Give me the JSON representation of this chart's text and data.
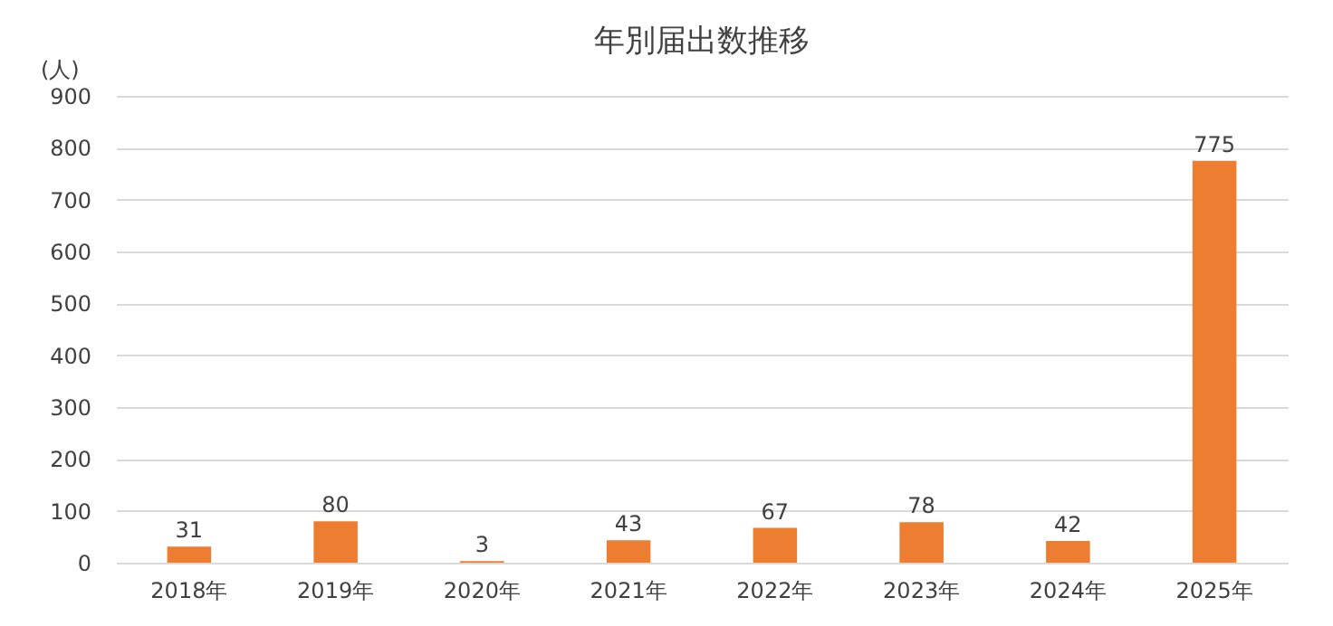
{
  "chart_data": {
    "type": "bar",
    "title": "年別届出数推移",
    "ylabel": "(人)",
    "categories": [
      "2018年",
      "2019年",
      "2020年",
      "2021年",
      "2022年",
      "2023年",
      "2024年",
      "2025年"
    ],
    "values": [
      31,
      80,
      3,
      43,
      67,
      78,
      42,
      775
    ],
    "color": "#ed7d31",
    "ylim": [
      0,
      900
    ],
    "yticks": [
      0,
      100,
      200,
      300,
      400,
      500,
      600,
      700,
      800,
      900
    ],
    "grid": "y",
    "data_labels": true
  }
}
